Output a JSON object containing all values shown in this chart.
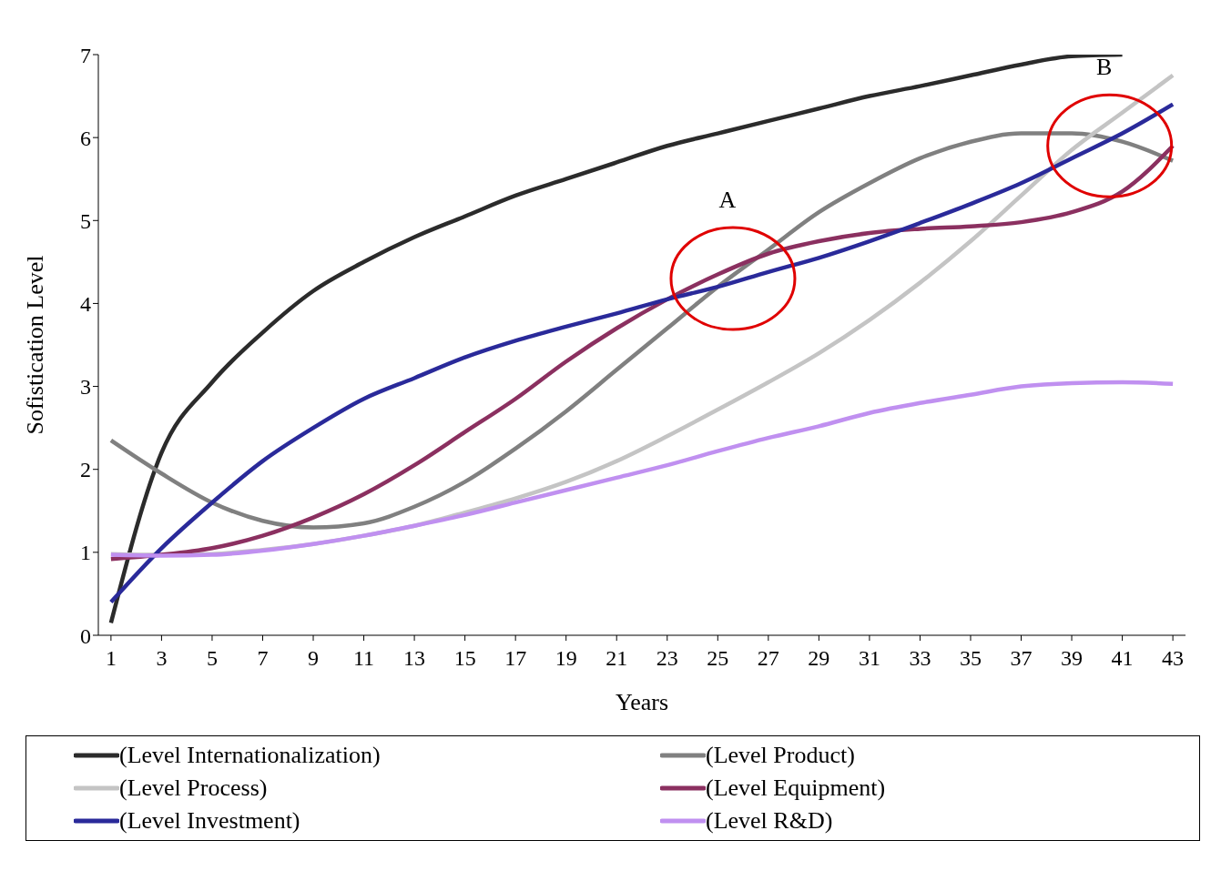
{
  "chart_data": {
    "type": "line",
    "xlabel": "Years",
    "ylabel": "Sofistication Level",
    "x": [
      1,
      3,
      5,
      7,
      9,
      11,
      13,
      15,
      17,
      19,
      21,
      23,
      25,
      27,
      29,
      31,
      33,
      35,
      37,
      39,
      41,
      43
    ],
    "xlim": [
      0.5,
      43.5
    ],
    "xticks": [
      1,
      3,
      5,
      7,
      9,
      11,
      13,
      15,
      17,
      19,
      21,
      23,
      25,
      27,
      29,
      31,
      33,
      35,
      37,
      39,
      41,
      43
    ],
    "ylim": [
      0,
      7
    ],
    "yticks": [
      0,
      1,
      2,
      3,
      4,
      5,
      6,
      7
    ],
    "legend": "bottom",
    "series": [
      {
        "name": "(Level Internationalization)",
        "color": "#2b2b2b",
        "values": [
          0.15,
          2.2,
          3.05,
          3.65,
          4.15,
          4.5,
          4.8,
          5.05,
          5.3,
          5.5,
          5.7,
          5.9,
          6.05,
          6.2,
          6.35,
          6.5,
          6.62,
          6.75,
          6.88,
          6.98,
          7.0,
          null
        ]
      },
      {
        "name": "(Level Product)",
        "color": "#808080",
        "values": [
          2.35,
          1.95,
          1.6,
          1.38,
          1.3,
          1.35,
          1.55,
          1.85,
          2.25,
          2.7,
          3.2,
          3.7,
          4.2,
          4.65,
          5.1,
          5.45,
          5.75,
          5.95,
          6.05,
          6.05,
          5.95,
          5.72
        ]
      },
      {
        "name": "(Level Process)",
        "color": "#c4c4c4",
        "values": [
          0.98,
          0.97,
          0.98,
          1.03,
          1.1,
          1.2,
          1.32,
          1.48,
          1.65,
          1.85,
          2.1,
          2.4,
          2.72,
          3.05,
          3.4,
          3.8,
          4.25,
          4.75,
          5.3,
          5.85,
          6.3,
          6.75
        ]
      },
      {
        "name": "(Level Equipment)",
        "color": "#8b3060",
        "values": [
          0.92,
          0.97,
          1.05,
          1.2,
          1.42,
          1.7,
          2.05,
          2.45,
          2.85,
          3.3,
          3.7,
          4.05,
          4.35,
          4.6,
          4.75,
          4.85,
          4.9,
          4.93,
          4.98,
          5.1,
          5.35,
          5.9
        ]
      },
      {
        "name": "(Level Investment)",
        "color": "#2a2a9a",
        "values": [
          0.4,
          1.05,
          1.6,
          2.1,
          2.5,
          2.85,
          3.1,
          3.35,
          3.55,
          3.72,
          3.88,
          4.05,
          4.2,
          4.38,
          4.55,
          4.75,
          4.97,
          5.2,
          5.45,
          5.75,
          6.05,
          6.4
        ]
      },
      {
        "name": "(Level R&D)",
        "color": "#c090f0",
        "values": [
          0.97,
          0.96,
          0.97,
          1.02,
          1.1,
          1.2,
          1.32,
          1.45,
          1.6,
          1.75,
          1.9,
          2.05,
          2.22,
          2.38,
          2.52,
          2.68,
          2.8,
          2.9,
          3.0,
          3.04,
          3.05,
          3.03
        ]
      }
    ],
    "annotations": [
      {
        "text": "A",
        "x": 25.6,
        "y": 4.3
      },
      {
        "text": "B",
        "x": 40.5,
        "y": 5.9
      }
    ]
  }
}
